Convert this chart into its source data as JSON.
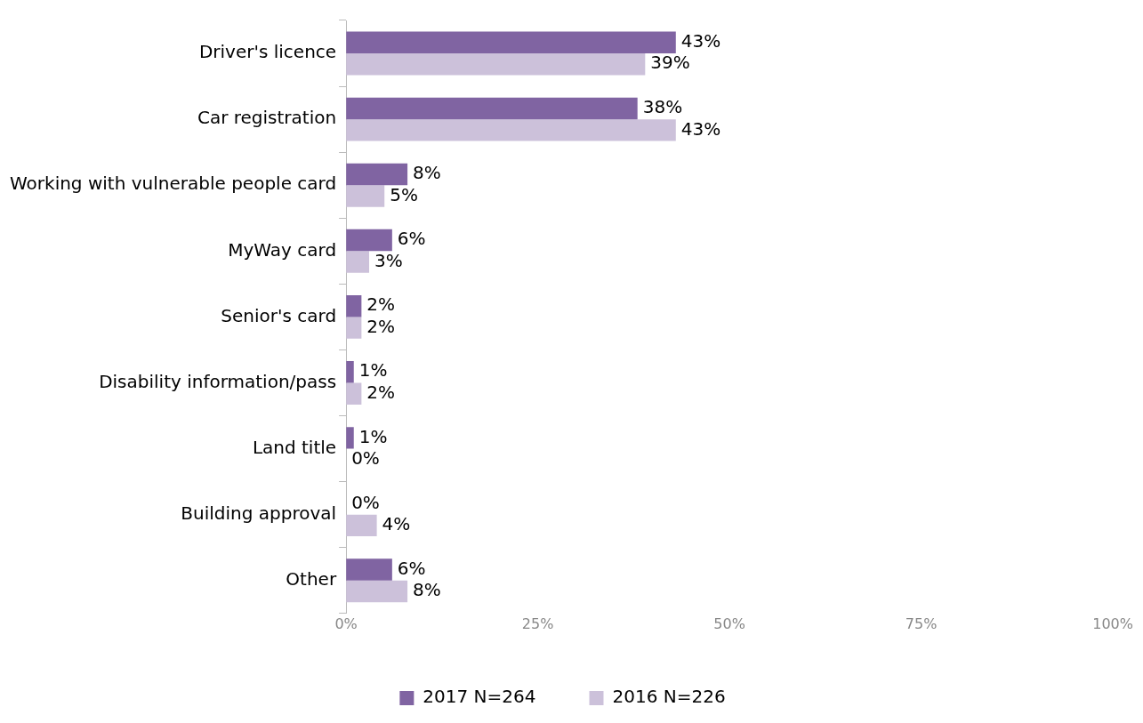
{
  "chart_data": {
    "type": "bar",
    "orientation": "horizontal",
    "categories": [
      "Driver's licence",
      "Car registration",
      "Working with vulnerable people card",
      "MyWay card",
      "Senior's card",
      "Disability information/pass",
      "Land title",
      "Building approval",
      "Other"
    ],
    "series": [
      {
        "name": "2017 N=264",
        "color": "#8064a2",
        "values": [
          43,
          38,
          8,
          6,
          2,
          1,
          1,
          0,
          6
        ],
        "value_labels": [
          "43%",
          "38%",
          "8%",
          "6%",
          "2%",
          "1%",
          "1%",
          "0%",
          "6%"
        ]
      },
      {
        "name": "2016 N=226",
        "color": "#ccc1da",
        "values": [
          39,
          43,
          5,
          3,
          2,
          2,
          0,
          4,
          8
        ],
        "value_labels": [
          "39%",
          "43%",
          "5%",
          "3%",
          "2%",
          "2%",
          "0%",
          "4%",
          "8%"
        ]
      }
    ],
    "xlim": [
      0,
      100
    ],
    "xticks": [
      {
        "value": 0,
        "label": "0%"
      },
      {
        "value": 25,
        "label": "25%"
      },
      {
        "value": 50,
        "label": "50%"
      },
      {
        "value": 75,
        "label": "75%"
      },
      {
        "value": 100,
        "label": "100%"
      }
    ],
    "grid": false,
    "legend": "bottom"
  }
}
